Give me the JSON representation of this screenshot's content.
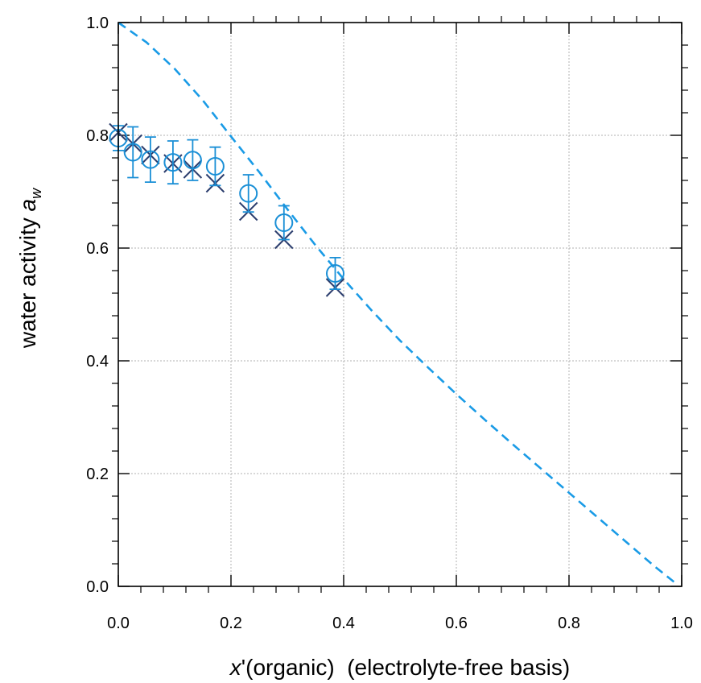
{
  "chart_data": {
    "type": "scatter",
    "title": "",
    "xlabel": {
      "italic": "x",
      "prime": "'",
      "rest": "(organic)  (electrolyte-free basis)"
    },
    "ylabel": {
      "main": "water activity ",
      "italic": "a",
      "sub": "w"
    },
    "xlim": [
      0.0,
      1.0
    ],
    "ylim": [
      0.0,
      1.0
    ],
    "x_ticks": [
      "0.0",
      "0.2",
      "0.4",
      "0.6",
      "0.8",
      "1.0"
    ],
    "y_ticks": [
      "0.0",
      "0.2",
      "0.4",
      "0.6",
      "0.8",
      "1.0"
    ],
    "grid": true,
    "legend": "none",
    "colors": {
      "circles": "#1a8fd6",
      "crosses": "#2c3e6e",
      "dashed_line": "#1a9be6",
      "grid": "#b0b0b0",
      "axes": "#000000"
    },
    "series": [
      {
        "marker": "circle-with-error-bars",
        "x": [
          0.0,
          0.026,
          0.057,
          0.097,
          0.132,
          0.172,
          0.231,
          0.294,
          0.385
        ],
        "y": [
          0.795,
          0.77,
          0.757,
          0.752,
          0.756,
          0.745,
          0.697,
          0.645,
          0.555
        ],
        "err": [
          0.022,
          0.045,
          0.04,
          0.038,
          0.036,
          0.034,
          0.033,
          0.03,
          0.028
        ]
      },
      {
        "marker": "cross",
        "x": [
          0.0,
          0.026,
          0.057,
          0.097,
          0.132,
          0.172,
          0.231,
          0.294,
          0.385
        ],
        "y": [
          0.805,
          0.785,
          0.765,
          0.75,
          0.74,
          0.715,
          0.665,
          0.615,
          0.53
        ]
      },
      {
        "marker": "dashed-line",
        "x": [
          0.0,
          0.05,
          0.1,
          0.15,
          0.2,
          0.25,
          0.3,
          0.35,
          0.4,
          0.45,
          0.5,
          0.55,
          0.6,
          0.65,
          0.7,
          0.75,
          0.8,
          0.85,
          0.9,
          0.95,
          0.99
        ],
        "y": [
          1.0,
          0.965,
          0.918,
          0.862,
          0.798,
          0.735,
          0.669,
          0.605,
          0.545,
          0.489,
          0.436,
          0.388,
          0.341,
          0.296,
          0.252,
          0.209,
          0.166,
          0.123,
          0.08,
          0.037,
          0.005
        ]
      }
    ]
  }
}
